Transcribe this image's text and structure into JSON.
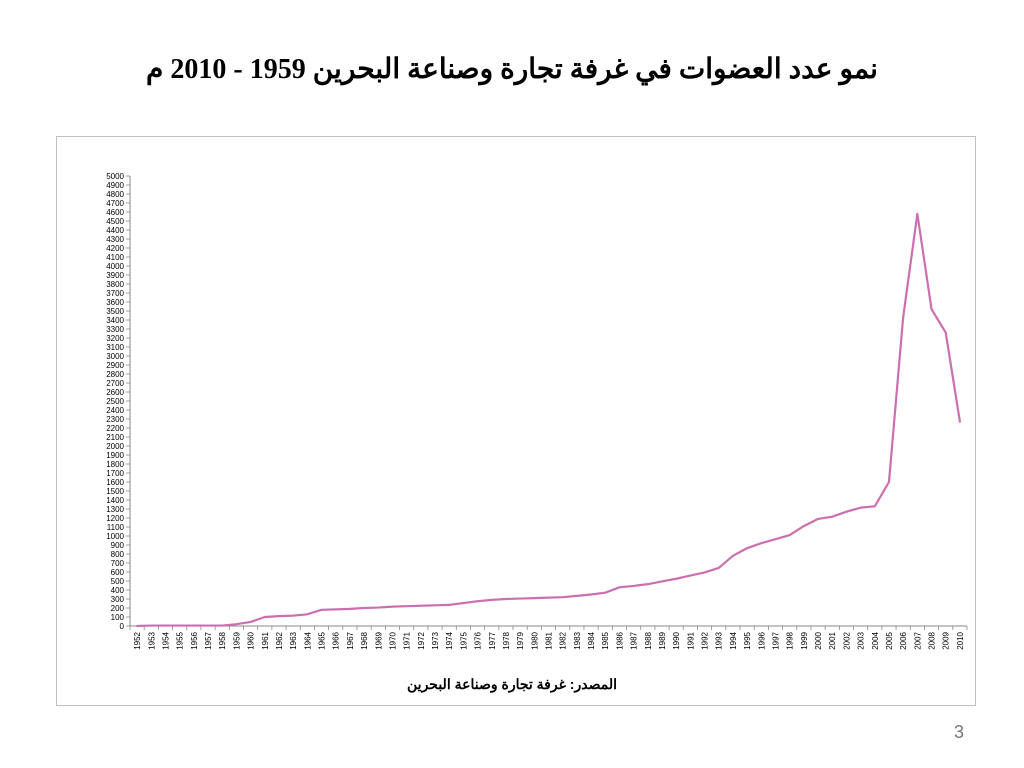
{
  "slide": {
    "title": "نمو عدد العضوات في غرفة تجارة وصناعة البحرين 1959 - 2010 م",
    "source": "المصدر: غرفة تجارة وصناعة البحرين",
    "page_number": "3"
  },
  "chart_data": {
    "type": "line",
    "title": "",
    "xlabel": "",
    "ylabel": "",
    "ylim": [
      0,
      5000
    ],
    "ytick_step": 100,
    "grid": false,
    "legend": "none",
    "line_color": "#cc6fb0",
    "x": [
      "1952",
      "1953",
      "1954",
      "1955",
      "1956",
      "1957",
      "1958",
      "1959",
      "1960",
      "1961",
      "1962",
      "1963",
      "1964",
      "1965",
      "1966",
      "1967",
      "1968",
      "1969",
      "1970",
      "1971",
      "1972",
      "1973",
      "1974",
      "1975",
      "1976",
      "1977",
      "1978",
      "1979",
      "1980",
      "1981",
      "1982",
      "1983",
      "1984",
      "1985",
      "1986",
      "1987",
      "1988",
      "1989",
      "1990",
      "1991",
      "1992",
      "1993",
      "1994",
      "1995",
      "1996",
      "1997",
      "1998",
      "1999",
      "2000",
      "2001",
      "2002",
      "2003",
      "2004",
      "2005",
      "2006",
      "2007",
      "2008",
      "2009",
      "2010"
    ],
    "series": [
      {
        "values": [
          0,
          5,
          5,
          5,
          5,
          5,
          5,
          20,
          45,
          100,
          110,
          115,
          130,
          180,
          185,
          190,
          200,
          205,
          215,
          220,
          225,
          230,
          235,
          255,
          275,
          290,
          300,
          305,
          310,
          315,
          320,
          335,
          350,
          370,
          430,
          445,
          465,
          495,
          525,
          560,
          595,
          645,
          780,
          865,
          920,
          965,
          1010,
          1110,
          1190,
          1215,
          1270,
          1315,
          1330,
          1600,
          3430,
          4580,
          3520,
          3260,
          2270
        ]
      }
    ]
  }
}
